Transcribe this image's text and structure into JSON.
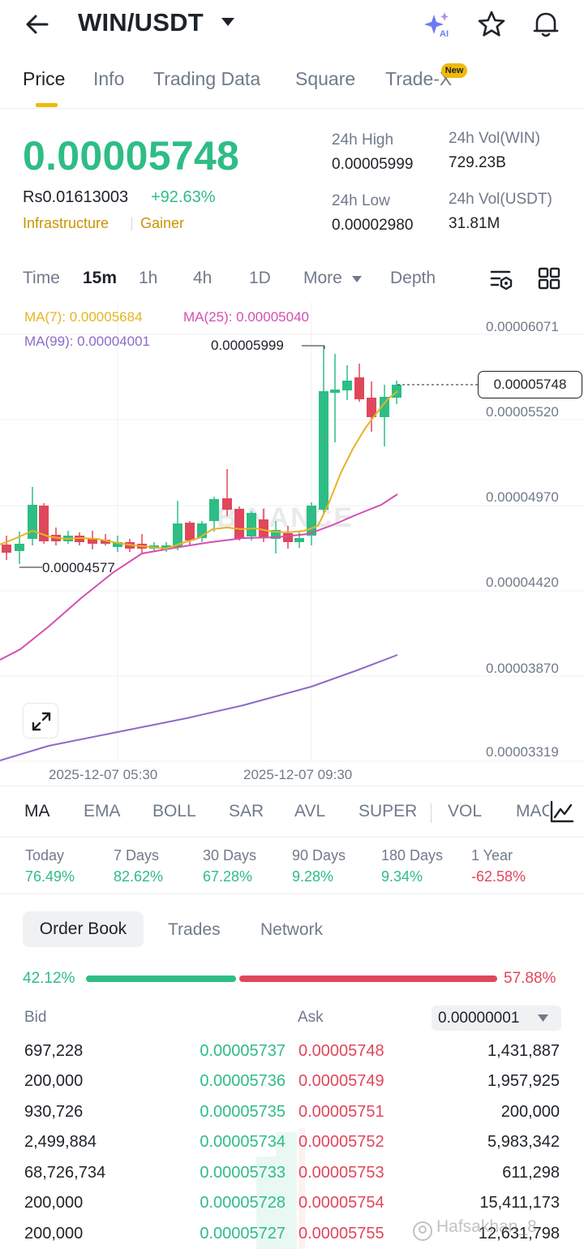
{
  "header": {
    "pair": "WIN/USDT"
  },
  "tabs": {
    "price": "Price",
    "info": "Info",
    "trading_data": "Trading Data",
    "square": "Square",
    "trade_x": "Trade-X",
    "new_badge": "New"
  },
  "ticker": {
    "last_price": "0.00005748",
    "fiat_price": "Rs0.01613003",
    "change": "+92.63%",
    "tags": [
      "Infrastructure",
      "Gainer"
    ],
    "high_label": "24h High",
    "high": "0.00005999",
    "low_label": "24h Low",
    "low": "0.00002980",
    "vol_base_label": "24h Vol(WIN)",
    "vol_base": "729.23B",
    "vol_quote_label": "24h Vol(USDT)",
    "vol_quote": "31.81M"
  },
  "intervals": {
    "time": "Time",
    "m15": "15m",
    "h1": "1h",
    "h4": "4h",
    "d1": "1D",
    "more": "More",
    "depth": "Depth"
  },
  "chart": {
    "ma7": "MA(7): 0.00005684",
    "ma25": "MA(25): 0.00005040",
    "ma99": "MA(99): 0.00004001",
    "price_ticks": [
      "0.00006071",
      "0.00005520",
      "0.00004970",
      "0.00004420",
      "0.00003870",
      "0.00003319"
    ],
    "current_price": "0.00005748",
    "high_annotation": "0.00005999",
    "low_annotation": "0.00004577",
    "time_ticks": [
      "2025-12-07 05:30",
      "2025-12-07 09:30"
    ],
    "watermark": "BINANCE",
    "colors": {
      "up": "#2ebd85",
      "down": "#e0475b",
      "ma7": "#e6b422",
      "ma25": "#d44fb1",
      "ma99": "#8c6bc8"
    }
  },
  "indicators": [
    "MA",
    "EMA",
    "BOLL",
    "SAR",
    "AVL",
    "SUPER",
    "VOL",
    "MACD"
  ],
  "performance": [
    {
      "label": "Today",
      "value": "76.49%"
    },
    {
      "label": "7 Days",
      "value": "82.62%"
    },
    {
      "label": "30 Days",
      "value": "67.28%"
    },
    {
      "label": "90 Days",
      "value": "9.28%"
    },
    {
      "label": "180 Days",
      "value": "9.34%"
    },
    {
      "label": "1 Year",
      "value": "-62.58%"
    }
  ],
  "orderbook": {
    "tabs": {
      "order_book": "Order Book",
      "trades": "Trades",
      "network": "Network"
    },
    "bid_ratio": "42.12%",
    "ask_ratio": "57.88%",
    "bid_header": "Bid",
    "ask_header": "Ask",
    "precision": "0.00000001",
    "rows": [
      {
        "bid_qty": "697,228",
        "bid_price": "0.00005737",
        "ask_price": "0.00005748",
        "ask_qty": "1,431,887"
      },
      {
        "bid_qty": "200,000",
        "bid_price": "0.00005736",
        "ask_price": "0.00005749",
        "ask_qty": "1,957,925"
      },
      {
        "bid_qty": "930,726",
        "bid_price": "0.00005735",
        "ask_price": "0.00005751",
        "ask_qty": "200,000"
      },
      {
        "bid_qty": "2,499,884",
        "bid_price": "0.00005734",
        "ask_price": "0.00005752",
        "ask_qty": "5,983,342"
      },
      {
        "bid_qty": "68,726,734",
        "bid_price": "0.00005733",
        "ask_price": "0.00005753",
        "ask_qty": "611,298"
      },
      {
        "bid_qty": "200,000",
        "bid_price": "0.00005728",
        "ask_price": "0.00005754",
        "ask_qty": "15,411,173"
      },
      {
        "bid_qty": "200,000",
        "bid_price": "0.00005727",
        "ask_price": "0.00005755",
        "ask_qty": "12,631,798"
      }
    ]
  },
  "watermark_user": "Hafsakhan_8"
}
